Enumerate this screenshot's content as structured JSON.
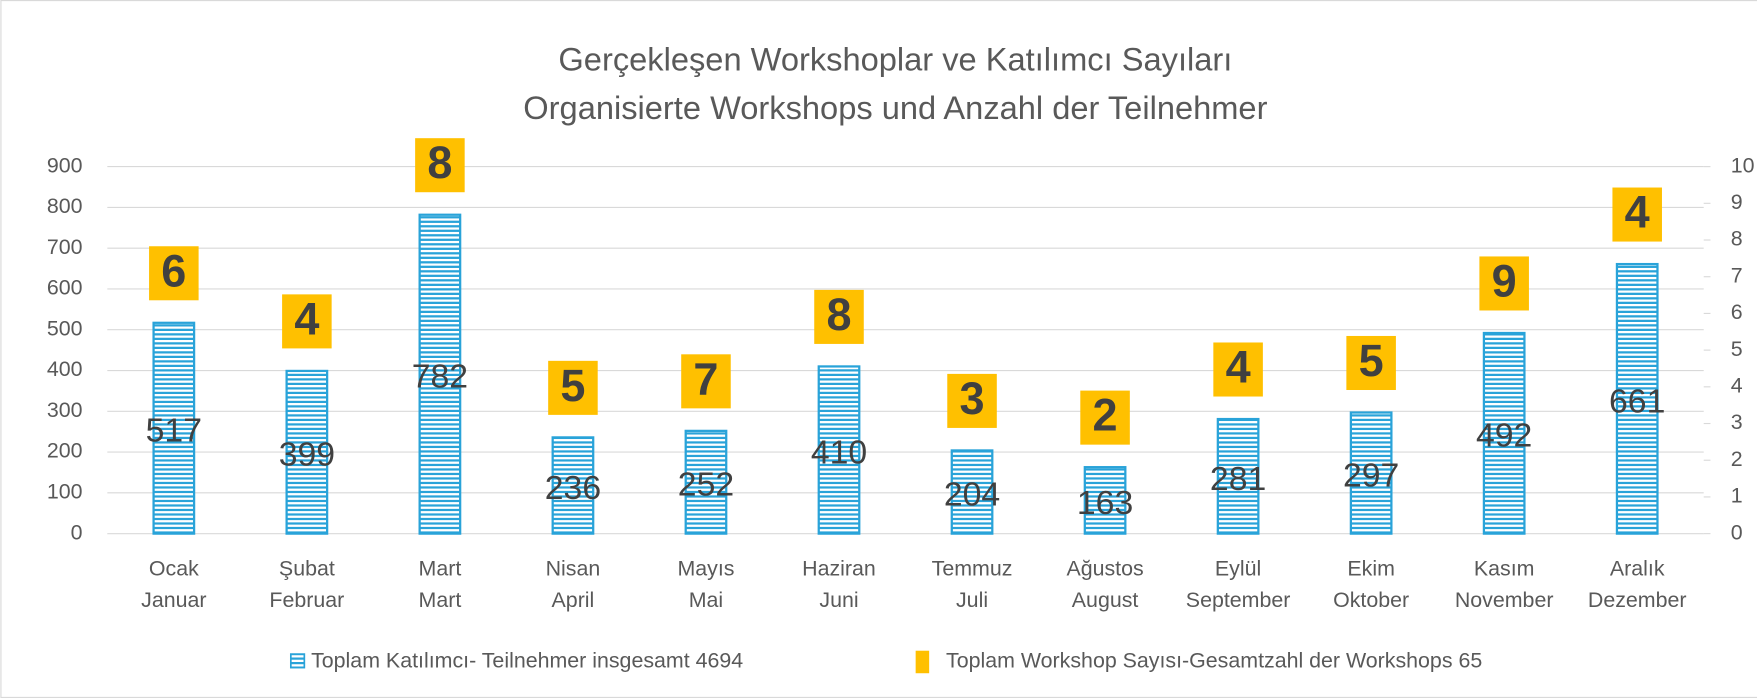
{
  "chart_data": {
    "type": "bar",
    "title": "Gerçekleşen  Workshoplar ve Katılımcı Sayıları",
    "subtitle": "Organisierte Workshops und Anzahl der Teilnehmer",
    "categories": [
      [
        "Ocak",
        "Januar"
      ],
      [
        "Şubat",
        "Februar"
      ],
      [
        "Mart",
        "Mart"
      ],
      [
        "Nisan",
        "April"
      ],
      [
        "Mayıs",
        "Mai"
      ],
      [
        "Haziran",
        "Juni"
      ],
      [
        "Temmuz",
        "Juli"
      ],
      [
        "Ağustos",
        "August"
      ],
      [
        "Eylül",
        "September"
      ],
      [
        "Ekim",
        "Oktober"
      ],
      [
        "Kasım",
        "November"
      ],
      [
        "Aralık",
        "Dezember"
      ]
    ],
    "series": [
      {
        "name": "Toplam Katılımcı- Teilnehmer insgesamt 4694",
        "color": "#29a3d9",
        "values": [
          517,
          399,
          782,
          236,
          252,
          410,
          204,
          163,
          281,
          297,
          492,
          661
        ]
      },
      {
        "name": "Toplam Workshop Sayısı-Gesamtzahl der Workshops 65",
        "color": "#ffc000",
        "axis": "y2",
        "values": [
          6,
          4,
          8,
          5,
          7,
          8,
          3,
          2,
          4,
          5,
          9,
          4
        ]
      }
    ],
    "ylim": [
      0,
      900
    ],
    "yticks": [
      0,
      100,
      200,
      300,
      400,
      500,
      600,
      700,
      800,
      900
    ],
    "y2lim": [
      0,
      10
    ],
    "y2ticks": [
      0,
      1,
      2,
      3,
      4,
      5,
      6,
      7,
      8,
      9,
      10
    ],
    "grid": true,
    "legend": "bottom"
  }
}
